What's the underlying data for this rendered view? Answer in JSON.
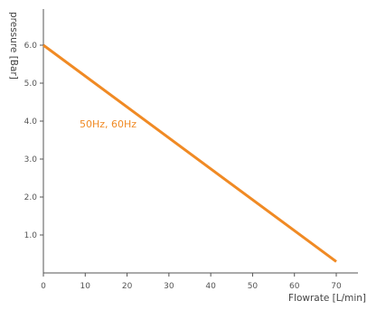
{
  "chart_data": {
    "type": "line",
    "title": "",
    "xlabel": "Flowrate [L/min]",
    "ylabel": "pressure [Bar]",
    "xlim": [
      0,
      70
    ],
    "ylim": [
      0,
      6.0
    ],
    "x_ticks": [
      0,
      10,
      20,
      30,
      40,
      50,
      60,
      70
    ],
    "y_ticks": [
      1.0,
      2.0,
      3.0,
      4.0,
      5.0,
      6.0
    ],
    "x_tick_labels": [
      "0",
      "10",
      "20",
      "30",
      "40",
      "50",
      "60",
      "70"
    ],
    "y_tick_labels": [
      "1.0",
      "2.0",
      "3.0",
      "4.0",
      "5.0",
      "6.0"
    ],
    "grid": false,
    "series": [
      {
        "name": "50Hz, 60Hz",
        "color": "#F08A24",
        "x": [
          0,
          70
        ],
        "y": [
          6.0,
          0.3
        ]
      }
    ]
  }
}
